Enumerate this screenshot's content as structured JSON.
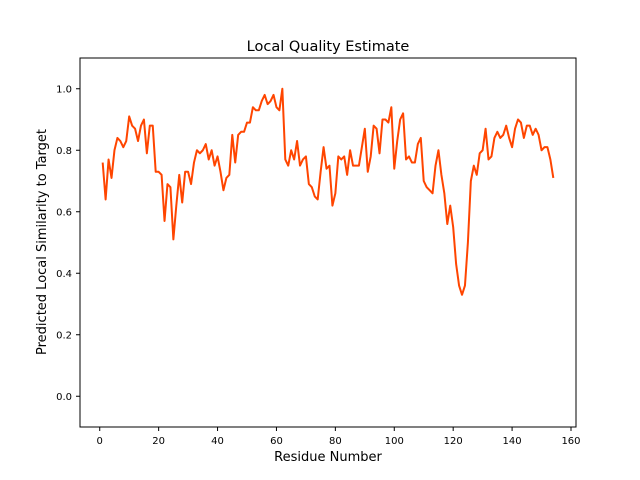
{
  "chart_data": {
    "type": "line",
    "title": "Local Quality Estimate",
    "xlabel": "Residue Number",
    "ylabel": "Predicted Local Similarity to Target",
    "xlim": [
      -6.7,
      161.7
    ],
    "ylim": [
      -0.1,
      1.1
    ],
    "x_ticks": [
      "0",
      "20",
      "40",
      "60",
      "80",
      "100",
      "120",
      "140",
      "160"
    ],
    "y_ticks": [
      "0.0",
      "0.2",
      "0.4",
      "0.6",
      "0.8",
      "1.0"
    ],
    "grid": false,
    "series": [
      {
        "color": "#FF4500",
        "x": [
          1,
          2,
          3,
          4,
          5,
          6,
          7,
          8,
          9,
          10,
          11,
          12,
          13,
          14,
          15,
          16,
          17,
          18,
          19,
          20,
          21,
          22,
          23,
          24,
          25,
          26,
          27,
          28,
          29,
          30,
          31,
          32,
          33,
          34,
          35,
          36,
          37,
          38,
          39,
          40,
          41,
          42,
          43,
          44,
          45,
          46,
          47,
          48,
          49,
          50,
          51,
          52,
          53,
          54,
          55,
          56,
          57,
          58,
          59,
          60,
          61,
          62,
          63,
          64,
          65,
          66,
          67,
          68,
          69,
          70,
          71,
          72,
          73,
          74,
          75,
          76,
          77,
          78,
          79,
          80,
          81,
          82,
          83,
          84,
          85,
          86,
          87,
          88,
          89,
          90,
          91,
          92,
          93,
          94,
          95,
          96,
          97,
          98,
          99,
          100,
          101,
          102,
          103,
          104,
          105,
          106,
          107,
          108,
          109,
          110,
          111,
          112,
          113,
          114,
          115,
          116,
          117,
          118,
          119,
          120,
          121,
          122,
          123,
          124,
          125,
          126,
          127,
          128,
          129,
          130,
          131,
          132,
          133,
          134,
          135,
          136,
          137,
          138,
          139,
          140,
          141,
          142,
          143,
          144,
          145,
          146,
          147,
          148,
          149,
          150,
          151,
          152,
          153,
          154
        ],
        "y": [
          0.76,
          0.64,
          0.77,
          0.71,
          0.8,
          0.84,
          0.83,
          0.81,
          0.83,
          0.91,
          0.88,
          0.87,
          0.83,
          0.88,
          0.9,
          0.79,
          0.88,
          0.88,
          0.73,
          0.73,
          0.72,
          0.57,
          0.69,
          0.68,
          0.51,
          0.62,
          0.72,
          0.63,
          0.73,
          0.73,
          0.69,
          0.76,
          0.8,
          0.79,
          0.8,
          0.82,
          0.77,
          0.8,
          0.75,
          0.78,
          0.73,
          0.67,
          0.71,
          0.72,
          0.85,
          0.76,
          0.85,
          0.86,
          0.86,
          0.89,
          0.89,
          0.94,
          0.93,
          0.93,
          0.96,
          0.98,
          0.95,
          0.96,
          0.98,
          0.94,
          0.93,
          1.0,
          0.77,
          0.75,
          0.8,
          0.77,
          0.83,
          0.75,
          0.77,
          0.78,
          0.69,
          0.68,
          0.65,
          0.64,
          0.73,
          0.81,
          0.74,
          0.75,
          0.62,
          0.66,
          0.78,
          0.77,
          0.78,
          0.72,
          0.8,
          0.75,
          0.75,
          0.75,
          0.81,
          0.87,
          0.73,
          0.78,
          0.88,
          0.87,
          0.79,
          0.9,
          0.9,
          0.89,
          0.94,
          0.74,
          0.83,
          0.9,
          0.92,
          0.77,
          0.78,
          0.76,
          0.76,
          0.82,
          0.84,
          0.7,
          0.68,
          0.67,
          0.66,
          0.75,
          0.8,
          0.72,
          0.66,
          0.56,
          0.62,
          0.55,
          0.43,
          0.36,
          0.33,
          0.36,
          0.5,
          0.7,
          0.75,
          0.72,
          0.79,
          0.8,
          0.87,
          0.77,
          0.78,
          0.84,
          0.86,
          0.84,
          0.85,
          0.88,
          0.84,
          0.81,
          0.87,
          0.9,
          0.89,
          0.84,
          0.88,
          0.88,
          0.85,
          0.87,
          0.85,
          0.8,
          0.81,
          0.81,
          0.77,
          0.71
        ]
      }
    ]
  }
}
